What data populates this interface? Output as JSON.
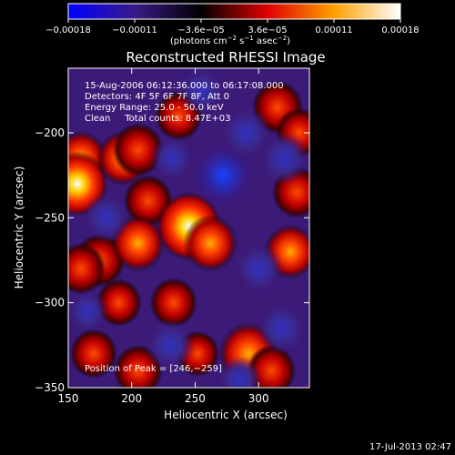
{
  "chart_data": {
    "type": "heatmap",
    "title": "Reconstructed RHESSI Image",
    "xlabel": "Heliocentric X (arcsec)",
    "ylabel": "Heliocentric Y (arcsec)",
    "xlim": [
      150,
      340
    ],
    "ylim": [
      -350,
      -162
    ],
    "x_ticks": [
      {
        "value": 150,
        "label": "150"
      },
      {
        "value": 200,
        "label": "200"
      },
      {
        "value": 250,
        "label": "250"
      },
      {
        "value": 300,
        "label": "300"
      }
    ],
    "y_ticks": [
      {
        "value": -200,
        "label": "−200"
      },
      {
        "value": -250,
        "label": "−250"
      },
      {
        "value": -300,
        "label": "−300"
      },
      {
        "value": -350,
        "label": "−350"
      }
    ],
    "colorbar": {
      "range": [
        -0.00018,
        0.00018
      ],
      "tick_labels": [
        "−0.00018",
        "−0.00011",
        "−3.6e−05",
        "3.6e−05",
        "0.00011",
        "0.00018"
      ],
      "label_main": "(photons cm",
      "label_exp1": "−2",
      "label_mid": " s",
      "label_exp2": "−1",
      "label_after": " asec",
      "label_exp3": "−2",
      "label_end": ")",
      "colors": [
        "#0000ff",
        "#3a1a8a",
        "#000000",
        "#e00000",
        "#ffa000",
        "#ffffff"
      ]
    },
    "annotations": [
      "15-Aug-2006 06:12:36.000 to 06:17:08.000",
      "Detectors: 4F 5F 6F 7F 8F, Att 0",
      "Energy Range: 25.0 - 50.0 keV",
      "Clean     Total counts: 8.47E+03"
    ],
    "peak_label": "Position of Peak = [246,−259]",
    "peak": [
      246,
      -259
    ],
    "sources": [
      {
        "x": 160,
        "y": -215,
        "v": 0.00011
      },
      {
        "x": 157,
        "y": -230,
        "v": 0.00016
      },
      {
        "x": 175,
        "y": -275,
        "v": 0.0001
      },
      {
        "x": 160,
        "y": -280,
        "v": 9e-05
      },
      {
        "x": 193,
        "y": -215,
        "v": 0.00011
      },
      {
        "x": 205,
        "y": -210,
        "v": 0.0001
      },
      {
        "x": 213,
        "y": -240,
        "v": 9e-05
      },
      {
        "x": 205,
        "y": -265,
        "v": 0.00012
      },
      {
        "x": 190,
        "y": -300,
        "v": 7e-05
      },
      {
        "x": 170,
        "y": -330,
        "v": 8e-05
      },
      {
        "x": 205,
        "y": -340,
        "v": 9e-05
      },
      {
        "x": 245,
        "y": -255,
        "v": 0.00018
      },
      {
        "x": 262,
        "y": -265,
        "v": 0.00012
      },
      {
        "x": 233,
        "y": -300,
        "v": 8e-05
      },
      {
        "x": 237,
        "y": -190,
        "v": 8e-05
      },
      {
        "x": 252,
        "y": -330,
        "v": 6e-05
      },
      {
        "x": 292,
        "y": -330,
        "v": 0.00015
      },
      {
        "x": 310,
        "y": -340,
        "v": 9e-05
      },
      {
        "x": 325,
        "y": -270,
        "v": 0.00011
      },
      {
        "x": 330,
        "y": -235,
        "v": 9e-05
      },
      {
        "x": 315,
        "y": -185,
        "v": 0.0001
      },
      {
        "x": 332,
        "y": -200,
        "v": 8e-05
      },
      {
        "x": 272,
        "y": -225,
        "v": -0.00016
      },
      {
        "x": 290,
        "y": -200,
        "v": -0.0001
      },
      {
        "x": 320,
        "y": -215,
        "v": -0.0001
      },
      {
        "x": 300,
        "y": -280,
        "v": -9e-05
      },
      {
        "x": 232,
        "y": -215,
        "v": -6e-05
      },
      {
        "x": 180,
        "y": -250,
        "v": -8e-05
      },
      {
        "x": 230,
        "y": -325,
        "v": -9e-05
      },
      {
        "x": 318,
        "y": -315,
        "v": -9e-05
      },
      {
        "x": 285,
        "y": -345,
        "v": -6e-05
      },
      {
        "x": 165,
        "y": -305,
        "v": -5e-05
      },
      {
        "x": 255,
        "y": -175,
        "v": -7e-05
      }
    ]
  },
  "footer": {
    "timestamp": "17-Jul-2013 02:47"
  }
}
